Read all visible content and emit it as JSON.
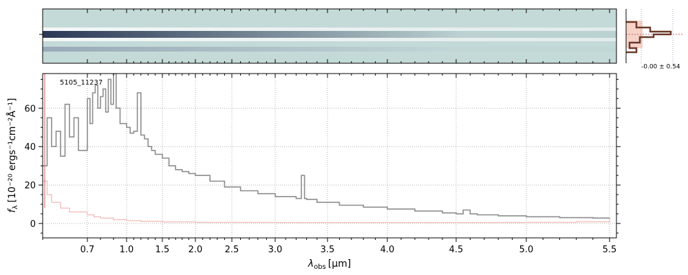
{
  "chart_data": {
    "type": "line",
    "object_id": "5105_11237",
    "xlabel_main": "λ",
    "xlabel_sub": "obs",
    "xlabel_unit": "[μm]",
    "ylabel_main": "f",
    "ylabel_sub": "λ",
    "ylabel_unit": "[10⁻²⁰ ergs⁻¹cm⁻²Å⁻¹]",
    "x_scale": "nonlinear (approx. logarithmic, dispersion-based)",
    "x_ticks": [
      0.7,
      1.0,
      1.5,
      2.0,
      2.5,
      3.0,
      3.5,
      4.0,
      4.5,
      5.0,
      5.5
    ],
    "x_tick_labels": [
      "0.7",
      "1.0",
      "1.5",
      "2.0",
      "2.5",
      "3.0",
      "3.5",
      "4.0",
      "4.5",
      "5.0",
      "5.5"
    ],
    "y_ticks": [
      0,
      20,
      40,
      60
    ],
    "y_tick_labels": [
      "0",
      "20",
      "40",
      "60"
    ],
    "xlim": [
      0.6,
      5.53
    ],
    "ylim": [
      -7.5,
      78
    ],
    "grid": true,
    "series": [
      {
        "role": "flux",
        "color": "#8c8c8c",
        "x": [
          0.6,
          0.61,
          0.62,
          0.63,
          0.64,
          0.65,
          0.66,
          0.67,
          0.68,
          0.7,
          0.72,
          0.74,
          0.76,
          0.78,
          0.8,
          0.82,
          0.84,
          0.86,
          0.88,
          0.9,
          0.92,
          0.95,
          1.0,
          1.05,
          1.1,
          1.15,
          1.2,
          1.25,
          1.3,
          1.35,
          1.4,
          1.5,
          1.6,
          1.7,
          1.8,
          1.9,
          2.0,
          2.2,
          2.4,
          2.6,
          2.8,
          3.0,
          3.2,
          3.25,
          3.28,
          3.3,
          3.4,
          3.6,
          3.8,
          4.0,
          4.2,
          4.4,
          4.5,
          4.55,
          4.6,
          4.65,
          4.8,
          5.0,
          5.2,
          5.4,
          5.5
        ],
        "values": [
          30,
          55,
          40,
          48,
          35,
          62,
          45,
          55,
          38,
          65,
          52,
          68,
          72,
          60,
          66,
          70,
          58,
          75,
          62,
          78,
          60,
          52,
          50,
          47,
          48,
          68,
          46,
          44,
          40,
          38,
          36,
          34,
          30,
          28,
          27,
          26,
          25,
          22,
          19,
          17,
          15.5,
          14,
          13,
          25,
          13,
          12.5,
          11,
          9.5,
          8.5,
          7.5,
          6.5,
          5.5,
          5,
          7,
          5,
          4.5,
          4,
          3.5,
          3,
          2.8,
          3
        ]
      },
      {
        "role": "uncertainty",
        "color": "#f4bfbf",
        "x": [
          0.6,
          0.61,
          0.62,
          0.64,
          0.66,
          0.7,
          0.75,
          0.8,
          0.9,
          1.0,
          1.2,
          1.5,
          2.0,
          3.0,
          4.0,
          5.0,
          5.3,
          5.5
        ],
        "values": [
          22,
          15,
          11,
          8,
          6,
          4.5,
          3.5,
          2.8,
          2,
          1.5,
          1.1,
          0.8,
          0.6,
          0.5,
          0.5,
          0.6,
          0.9,
          2.5
        ]
      }
    ],
    "inset": {
      "label": "-0.00 ± 0.54"
    },
    "colors": {
      "flux": "#8c8c8c",
      "error": "#f4bfbf",
      "spectrum_bg": "#c4dad8",
      "trace": "#2c3755",
      "profile": "#6b3a2a",
      "profile_fill": "#f7d3c7"
    }
  }
}
